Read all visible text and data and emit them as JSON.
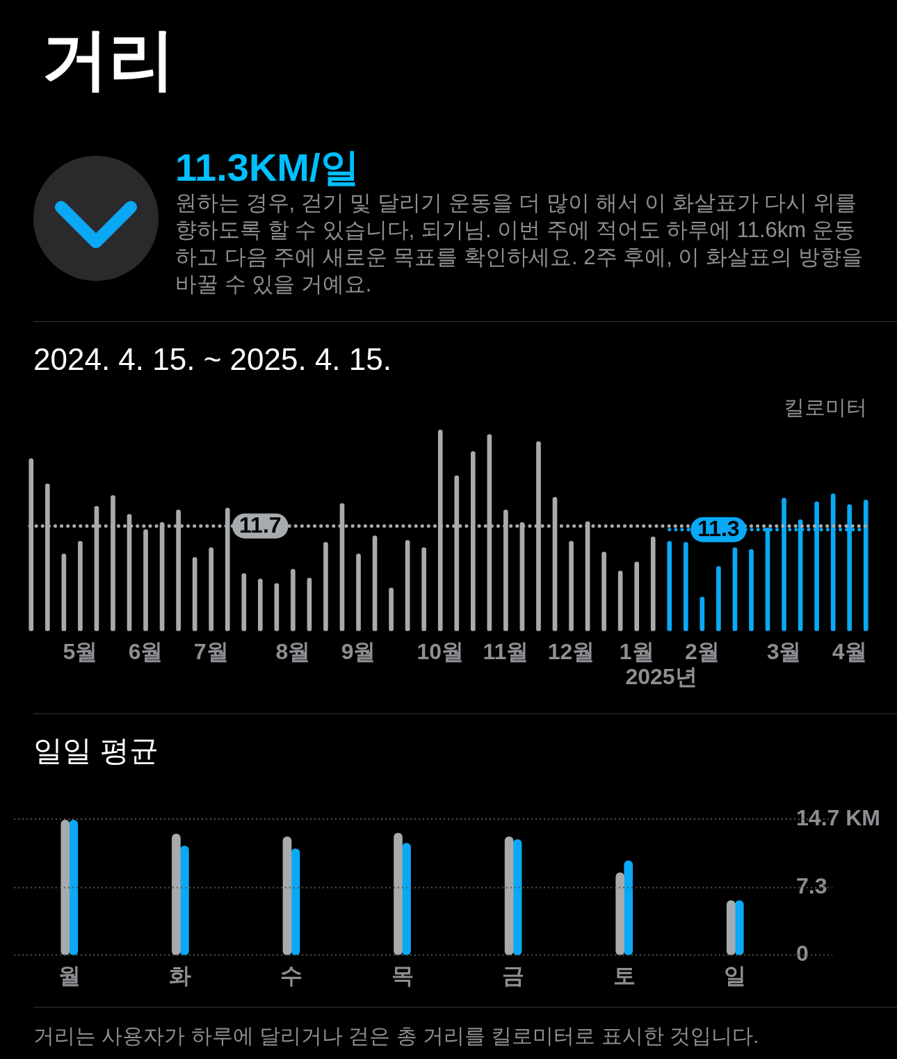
{
  "chart_data": [
    {
      "type": "bar",
      "title": "거리",
      "subtitle": "2024. 4. 15. ~ 2025. 4. 15.",
      "ylabel": "킬로미터",
      "annotations": [
        "11.3KM/일",
        "원하는 경우, 걷기 및 달리기 운동을 더 많이 해서 이 화살표가 다시 위를 향하도록 할 수 있습니다, 되기님. 이번 주에 적어도 하루에 11.6km 운동하고 다음 주에 새로운 목표를 확인하세요. 2주 후에, 이 화살표의 방향을 바꿀 수 있을 거예요.",
        "2025년"
      ],
      "categories": [
        null,
        null,
        null,
        "5월",
        null,
        null,
        null,
        "6월",
        null,
        null,
        null,
        "7월",
        null,
        null,
        null,
        null,
        "8월",
        null,
        null,
        null,
        "9월",
        null,
        null,
        null,
        null,
        "10월",
        null,
        null,
        null,
        "11월",
        null,
        null,
        null,
        "12월",
        null,
        null,
        null,
        "1월",
        null,
        null,
        null,
        "2월",
        null,
        null,
        null,
        null,
        "3월",
        null,
        null,
        null,
        "4월",
        null
      ],
      "series": [
        {
          "color": "#a7abad",
          "values": [
            19.2,
            16.4,
            8.6,
            10.0,
            13.9,
            15.1,
            13.0,
            11.3,
            12.1,
            13.5,
            8.2,
            9.3,
            13.7,
            6.4,
            5.8,
            5.3,
            6.9,
            5.9,
            9.9,
            14.2,
            8.6,
            10.6,
            4.8,
            10.1,
            9.3,
            22.4,
            17.3,
            20.0,
            21.9,
            13.5,
            12.1,
            21.1,
            14.9,
            10.0,
            12.2,
            8.8,
            6.7,
            7.7,
            10.5,
            null,
            null,
            null,
            null,
            null,
            null,
            null,
            null,
            null,
            null,
            null,
            null,
            null
          ]
        },
        {
          "color": "#0aa8f5",
          "values": [
            null,
            null,
            null,
            null,
            null,
            null,
            null,
            null,
            null,
            null,
            null,
            null,
            null,
            null,
            null,
            null,
            null,
            null,
            null,
            null,
            null,
            null,
            null,
            null,
            null,
            null,
            null,
            null,
            null,
            null,
            null,
            null,
            null,
            null,
            null,
            null,
            null,
            null,
            null,
            10.0,
            9.9,
            3.8,
            7.2,
            9.3,
            9.1,
            11.5,
            14.8,
            12.4,
            14.4,
            15.3,
            14.1,
            14.6
          ]
        }
      ],
      "ylim": [
        0,
        22.5
      ],
      "tick_labels": "x",
      "ref_lines": [
        {
          "axis": "y",
          "value": 11.7,
          "label": "11.7",
          "color": "#a7abad",
          "line_style": "dotted"
        },
        {
          "axis": "y",
          "value": 11.3,
          "label": "11.3",
          "color": "#0aa8f5",
          "line_style": "dotted"
        }
      ]
    },
    {
      "type": "bar",
      "title": "일일 평균",
      "annotations": [
        "거리는 사용자가 하루에 달리거나 걷은 총 거리를 킬로미터로 표시한 것입니다."
      ],
      "categories": [
        "월",
        "화",
        "수",
        "목",
        "금",
        "토",
        "일"
      ],
      "series": [
        {
          "color": "#a7abad",
          "values": [
            14.6,
            13.1,
            12.8,
            13.2,
            12.8,
            8.9,
            5.9
          ]
        },
        {
          "color": "#0aa8f5",
          "values": [
            14.6,
            11.8,
            11.5,
            12.1,
            12.5,
            10.2,
            5.9
          ]
        }
      ],
      "ylim": [
        0,
        14.7
      ],
      "yticks": [
        0,
        7.3,
        {
          "value": 14.7,
          "label": "14.7 KM"
        }
      ],
      "grid": "y"
    }
  ]
}
